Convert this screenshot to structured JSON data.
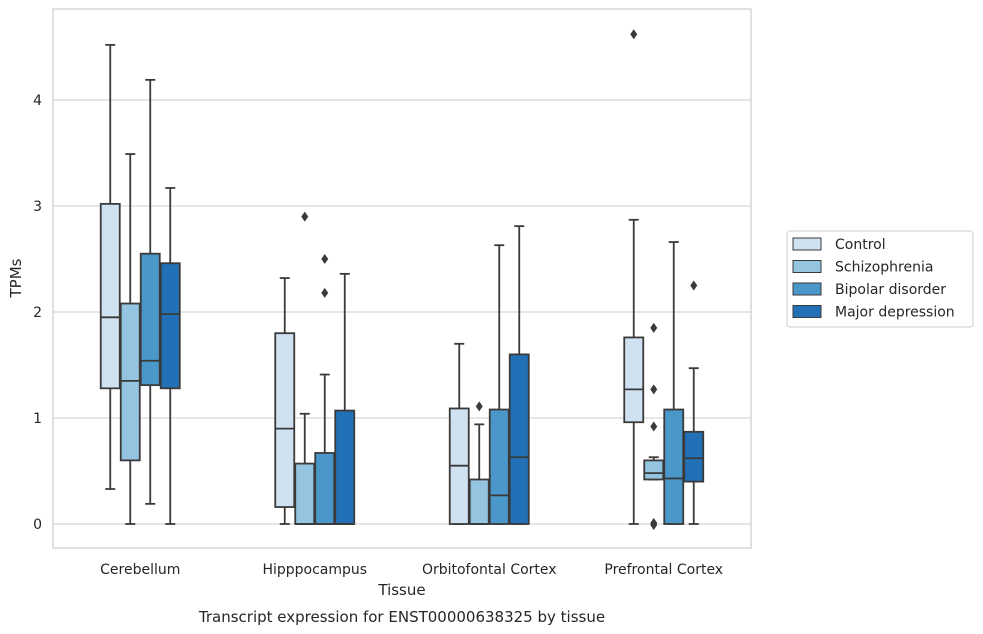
{
  "chart_data": {
    "type": "box",
    "title": "Transcript expression for ENST00000638325 by tissue",
    "xlabel": "Tissue",
    "ylabel": "TPMs",
    "ylim": [
      -0.22,
      4.85
    ],
    "yticks": [
      0,
      1,
      2,
      3,
      4
    ],
    "grid": "horizontal",
    "legend_position": "right",
    "categories": [
      "Cerebellum",
      "Hipppocampus",
      "Orbitofontal Cortex",
      "Prefrontal Cortex"
    ],
    "series": [
      {
        "name": "Control",
        "color": "#d0e1f2",
        "boxes": [
          {
            "whisker_low": 0.33,
            "q1": 1.28,
            "median": 1.95,
            "q3": 3.02,
            "whisker_high": 4.52,
            "outliers": []
          },
          {
            "whisker_low": 0.0,
            "q1": 0.16,
            "median": 0.9,
            "q3": 1.8,
            "whisker_high": 2.32,
            "outliers": []
          },
          {
            "whisker_low": 0.0,
            "q1": 0.0,
            "median": 0.55,
            "q3": 1.09,
            "whisker_high": 1.7,
            "outliers": []
          },
          {
            "whisker_low": 0.0,
            "q1": 0.96,
            "median": 1.27,
            "q3": 1.76,
            "whisker_high": 2.87,
            "outliers": [
              4.62
            ]
          }
        ]
      },
      {
        "name": "Schizophrenia",
        "color": "#94c4df",
        "boxes": [
          {
            "whisker_low": 0.0,
            "q1": 0.6,
            "median": 1.35,
            "q3": 2.08,
            "whisker_high": 3.49,
            "outliers": []
          },
          {
            "whisker_low": 0.0,
            "q1": 0.0,
            "median": 0.0,
            "q3": 0.57,
            "whisker_high": 1.04,
            "outliers": [
              2.9
            ]
          },
          {
            "whisker_low": 0.0,
            "q1": 0.0,
            "median": 0.0,
            "q3": 0.42,
            "whisker_high": 0.94,
            "outliers": [
              1.11
            ]
          },
          {
            "whisker_low": 0.42,
            "q1": 0.42,
            "median": 0.48,
            "q3": 0.6,
            "whisker_high": 0.63,
            "outliers": [
              1.85,
              1.27,
              0.92,
              0.01,
              -0.01
            ]
          }
        ]
      },
      {
        "name": "Bipolar disorder",
        "color": "#4a98c9",
        "boxes": [
          {
            "whisker_low": 0.19,
            "q1": 1.31,
            "median": 1.54,
            "q3": 2.55,
            "whisker_high": 4.19,
            "outliers": []
          },
          {
            "whisker_low": 0.0,
            "q1": 0.0,
            "median": 0.0,
            "q3": 0.67,
            "whisker_high": 1.41,
            "outliers": [
              2.5,
              2.18
            ]
          },
          {
            "whisker_low": 0.0,
            "q1": 0.0,
            "median": 0.27,
            "q3": 1.08,
            "whisker_high": 2.63,
            "outliers": []
          },
          {
            "whisker_low": 0.0,
            "q1": 0.0,
            "median": 0.43,
            "q3": 1.08,
            "whisker_high": 2.66,
            "outliers": []
          }
        ]
      },
      {
        "name": "Major depression",
        "color": "#2270b5",
        "boxes": [
          {
            "whisker_low": 0.0,
            "q1": 1.28,
            "median": 1.98,
            "q3": 2.46,
            "whisker_high": 3.17,
            "outliers": []
          },
          {
            "whisker_low": 0.0,
            "q1": 0.0,
            "median": 0.0,
            "q3": 1.07,
            "whisker_high": 2.36,
            "outliers": []
          },
          {
            "whisker_low": 0.0,
            "q1": 0.0,
            "median": 0.63,
            "q3": 1.6,
            "whisker_high": 2.81,
            "outliers": []
          },
          {
            "whisker_low": 0.0,
            "q1": 0.4,
            "median": 0.62,
            "q3": 0.87,
            "whisker_high": 1.47,
            "outliers": [
              2.25
            ]
          }
        ]
      }
    ]
  }
}
